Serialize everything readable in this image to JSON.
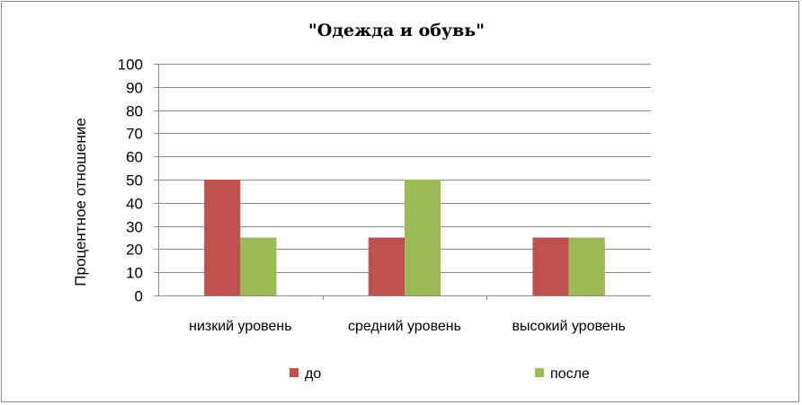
{
  "chart_data": {
    "type": "bar",
    "title": "\"Одежда и обувь\"",
    "ylabel": "Процентное отношение",
    "xlabel": "",
    "categories": [
      "низкий уровень",
      "средний уровень",
      "высокий уровень"
    ],
    "series": [
      {
        "name": "до",
        "values": [
          50,
          25,
          25
        ],
        "color": "#c0504d"
      },
      {
        "name": "после",
        "values": [
          25,
          50,
          25
        ],
        "color": "#9bbb59"
      }
    ],
    "ylim": [
      0,
      100
    ],
    "yticks": [
      0,
      10,
      20,
      30,
      40,
      50,
      60,
      70,
      80,
      90,
      100
    ],
    "grid": true,
    "legend_position": "bottom"
  }
}
